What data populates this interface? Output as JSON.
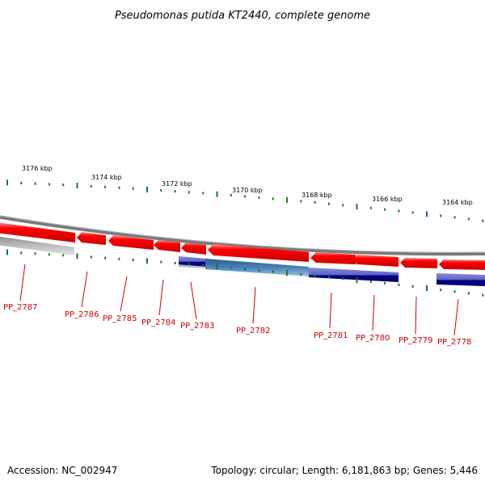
{
  "title": "Pseudomonas putida KT2440, complete genome",
  "accession_text": "Accession: NC_002947",
  "summary_text": "Topology: circular; Length: 6,181,863 bp; Genes: 5,446",
  "colors": {
    "backbone": "#777777",
    "forward_gene": "#ff0000",
    "reverse_cds": "#3a6ea5",
    "reverse_blue": "#00007a",
    "reverse_lavender": "#8080cc",
    "grey_feature": "#b4b4b4",
    "tick": "#1a7a1a",
    "label": "#cc0000"
  },
  "scale_labels": [
    "3176 kbp",
    "3174 kbp",
    "3172 kbp",
    "3170 kbp",
    "3168 kbp",
    "3166 kbp",
    "3164 kbp"
  ],
  "gene_labels": [
    "PP_2787",
    "PP_2786",
    "PP_2785",
    "PP_2784",
    "PP_2783",
    "PP_2782",
    "PP_2781",
    "PP_2780",
    "PP_2779",
    "PP_2778"
  ]
}
